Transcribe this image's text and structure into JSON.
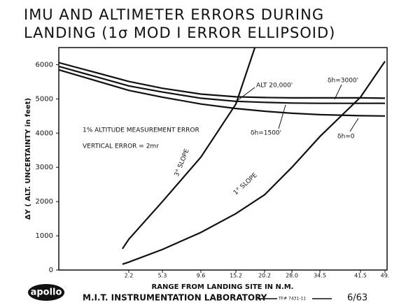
{
  "chart_data": {
    "type": "line",
    "title": "IMU AND ALTIMETER ERRORS DURING",
    "subtitle": "LANDING (1σ MOD I ERROR ELLIPSOID)",
    "x_label": "RANGE FROM LANDING SITE IN N.M.",
    "y_label": "ΔY ( ALT. UNCERTAINTY in feet)",
    "xlim": [
      0,
      49
    ],
    "xticks": [
      2.2,
      5.3,
      9.6,
      15.2,
      20.2,
      {
        "value": 28,
        "label": "28.0"
      },
      34.5,
      41.5,
      {
        "value": 49,
        "label": "49."
      }
    ],
    "ylim": [
      0,
      6500
    ],
    "yticks": [
      0,
      1000,
      2000,
      3000,
      4000,
      5000,
      6000
    ],
    "series": [
      {
        "name": "δh=3000'",
        "color": "#111111",
        "x": [
          0,
          2.2,
          5.3,
          9.6,
          15.2,
          20.2,
          28,
          34.5,
          41.5,
          49
        ],
        "values": [
          6060,
          5510,
          5310,
          5140,
          5060,
          5040,
          5030,
          5030,
          5030,
          5020
        ]
      },
      {
        "name": "δh=1500'",
        "color": "#111111",
        "x": [
          0,
          2.2,
          5.3,
          9.6,
          15.2,
          20.2,
          28,
          34.5,
          41.5,
          49
        ],
        "values": [
          5950,
          5380,
          5200,
          5020,
          4930,
          4900,
          4880,
          4870,
          4870,
          4870
        ]
      },
      {
        "name": "δh=0",
        "color": "#111111",
        "x": [
          0,
          2.2,
          5.3,
          9.6,
          15.2,
          20.2,
          28,
          34.5,
          41.5,
          49
        ],
        "values": [
          5850,
          5250,
          5050,
          4850,
          4720,
          4640,
          4580,
          4540,
          4510,
          4500
        ]
      },
      {
        "name": "3° SLOPE",
        "color": "#111111",
        "x": [
          2.0,
          2.2,
          5.3,
          9.6,
          15.2,
          18.5
        ],
        "values": [
          620,
          900,
          2000,
          3300,
          4850,
          6500
        ]
      },
      {
        "name": "1° SLOPE",
        "color": "#111111",
        "x": [
          2.0,
          2.2,
          5.3,
          9.6,
          15.2,
          20.2,
          28,
          34.5,
          41.5,
          49
        ],
        "values": [
          170,
          230,
          600,
          1100,
          1650,
          2200,
          3000,
          3900,
          5050,
          6100
        ]
      }
    ],
    "annotations": [
      "ALT 20,000'",
      "1% ALTITUDE MEASUREMENT ERROR",
      "VERTICAL ERROR = 2mr"
    ],
    "footer": {
      "logo": "apollo",
      "lab": "M.I.T. INSTRUMENTATION LABORATORY",
      "code": "TF# 7431-11",
      "date": "6/63"
    }
  }
}
